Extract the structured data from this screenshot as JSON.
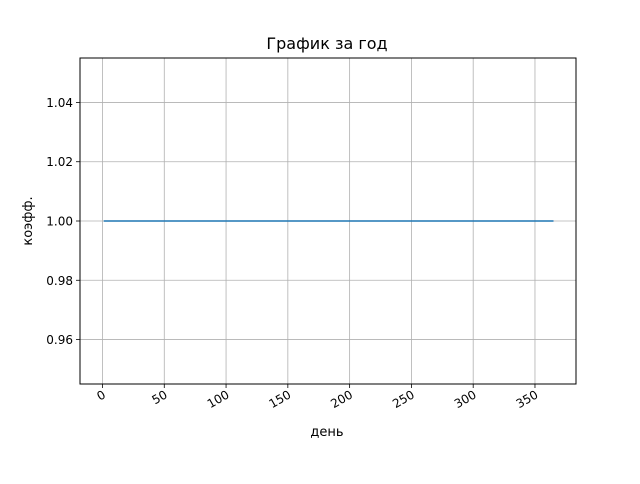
{
  "chart_data": {
    "type": "line",
    "title": "График за год",
    "xlabel": "день",
    "ylabel": "коэфф.",
    "xlim": [
      -18.2,
      383.2
    ],
    "ylim": [
      0.945,
      1.055
    ],
    "xticks": [
      0,
      50,
      100,
      150,
      200,
      250,
      300,
      350
    ],
    "yticks": [
      0.96,
      0.98,
      1.0,
      1.02,
      1.04
    ],
    "ytick_labels": [
      "0.96",
      "0.98",
      "1.00",
      "1.02",
      "1.04"
    ],
    "grid": true,
    "series": [
      {
        "color": "#1f77b4",
        "x": [
          1,
          365
        ],
        "y": [
          1.0,
          1.0
        ]
      }
    ]
  }
}
